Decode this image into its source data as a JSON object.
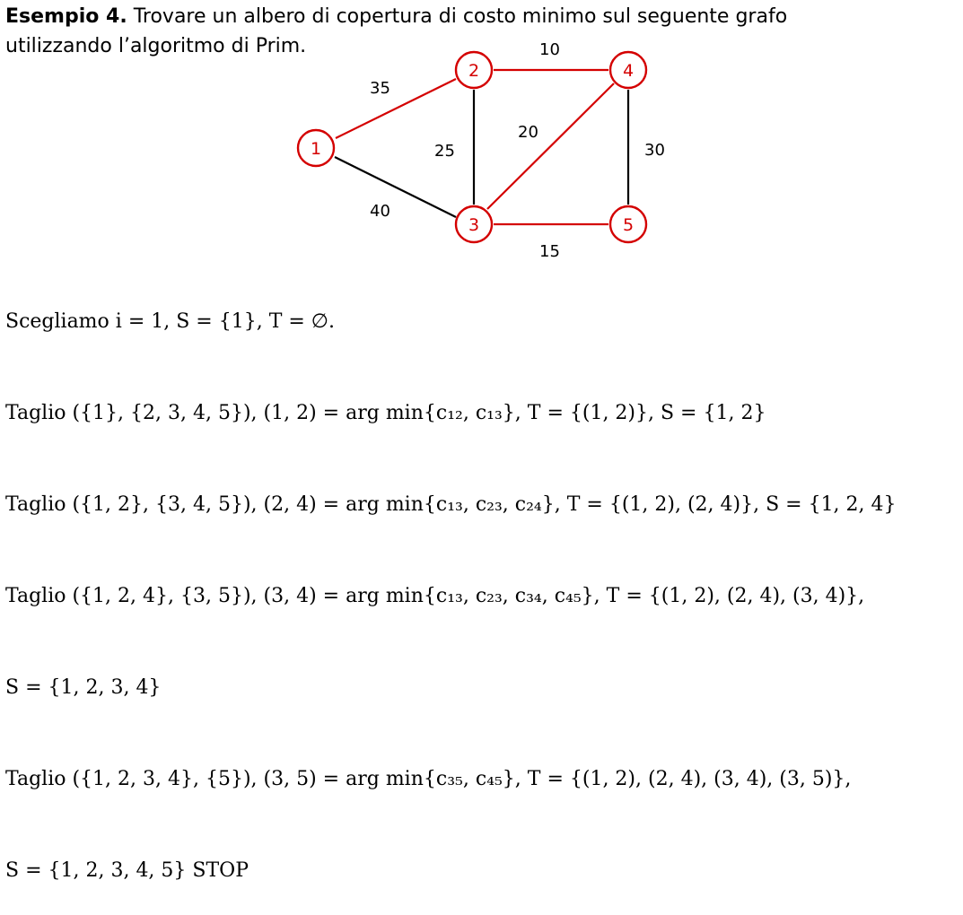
{
  "intro": {
    "title": "Esempio 4.",
    "text_line1": " Trovare un albero di copertura di costo minimo sul seguente grafo",
    "text_line2": "utilizzando l’algoritmo di Prim."
  },
  "graph": {
    "tree_color": "#d40000",
    "other_color": "#000000",
    "nodes": [
      "1",
      "2",
      "3",
      "4",
      "5"
    ],
    "edges": [
      {
        "from": "1",
        "to": "2",
        "weight": "35",
        "in_tree": true
      },
      {
        "from": "1",
        "to": "3",
        "weight": "40",
        "in_tree": false
      },
      {
        "from": "2",
        "to": "4",
        "weight": "10",
        "in_tree": true
      },
      {
        "from": "2",
        "to": "3",
        "weight": "25",
        "in_tree": false
      },
      {
        "from": "3",
        "to": "4",
        "weight": "20",
        "in_tree": true
      },
      {
        "from": "4",
        "to": "5",
        "weight": "30",
        "in_tree": false
      },
      {
        "from": "3",
        "to": "5",
        "weight": "15",
        "in_tree": true
      }
    ]
  },
  "steps": [
    "Scegliamo i = 1, S = {1}, T = ∅.",
    "Taglio ({1}, {2, 3, 4, 5}), (1, 2) = arg min{c₁₂, c₁₃}, T = {(1, 2)}, S = {1, 2}",
    "Taglio ({1, 2}, {3, 4, 5}), (2, 4) = arg min{c₁₃, c₂₃, c₂₄}, T = {(1, 2), (2, 4)}, S = {1, 2, 4}",
    "Taglio ({1, 2, 4}, {3, 5}), (3, 4) = arg min{c₁₃, c₂₃, c₃₄, c₄₅}, T = {(1, 2), (2, 4), (3, 4)},",
    "S = {1, 2, 3, 4}",
    "Taglio ({1, 2, 3, 4}, {5}), (3, 5) = arg min{c₃₅, c₄₅}, T = {(1, 2), (2, 4), (3, 4), (3, 5)},",
    "S = {1, 2, 3, 4, 5} STOP"
  ]
}
